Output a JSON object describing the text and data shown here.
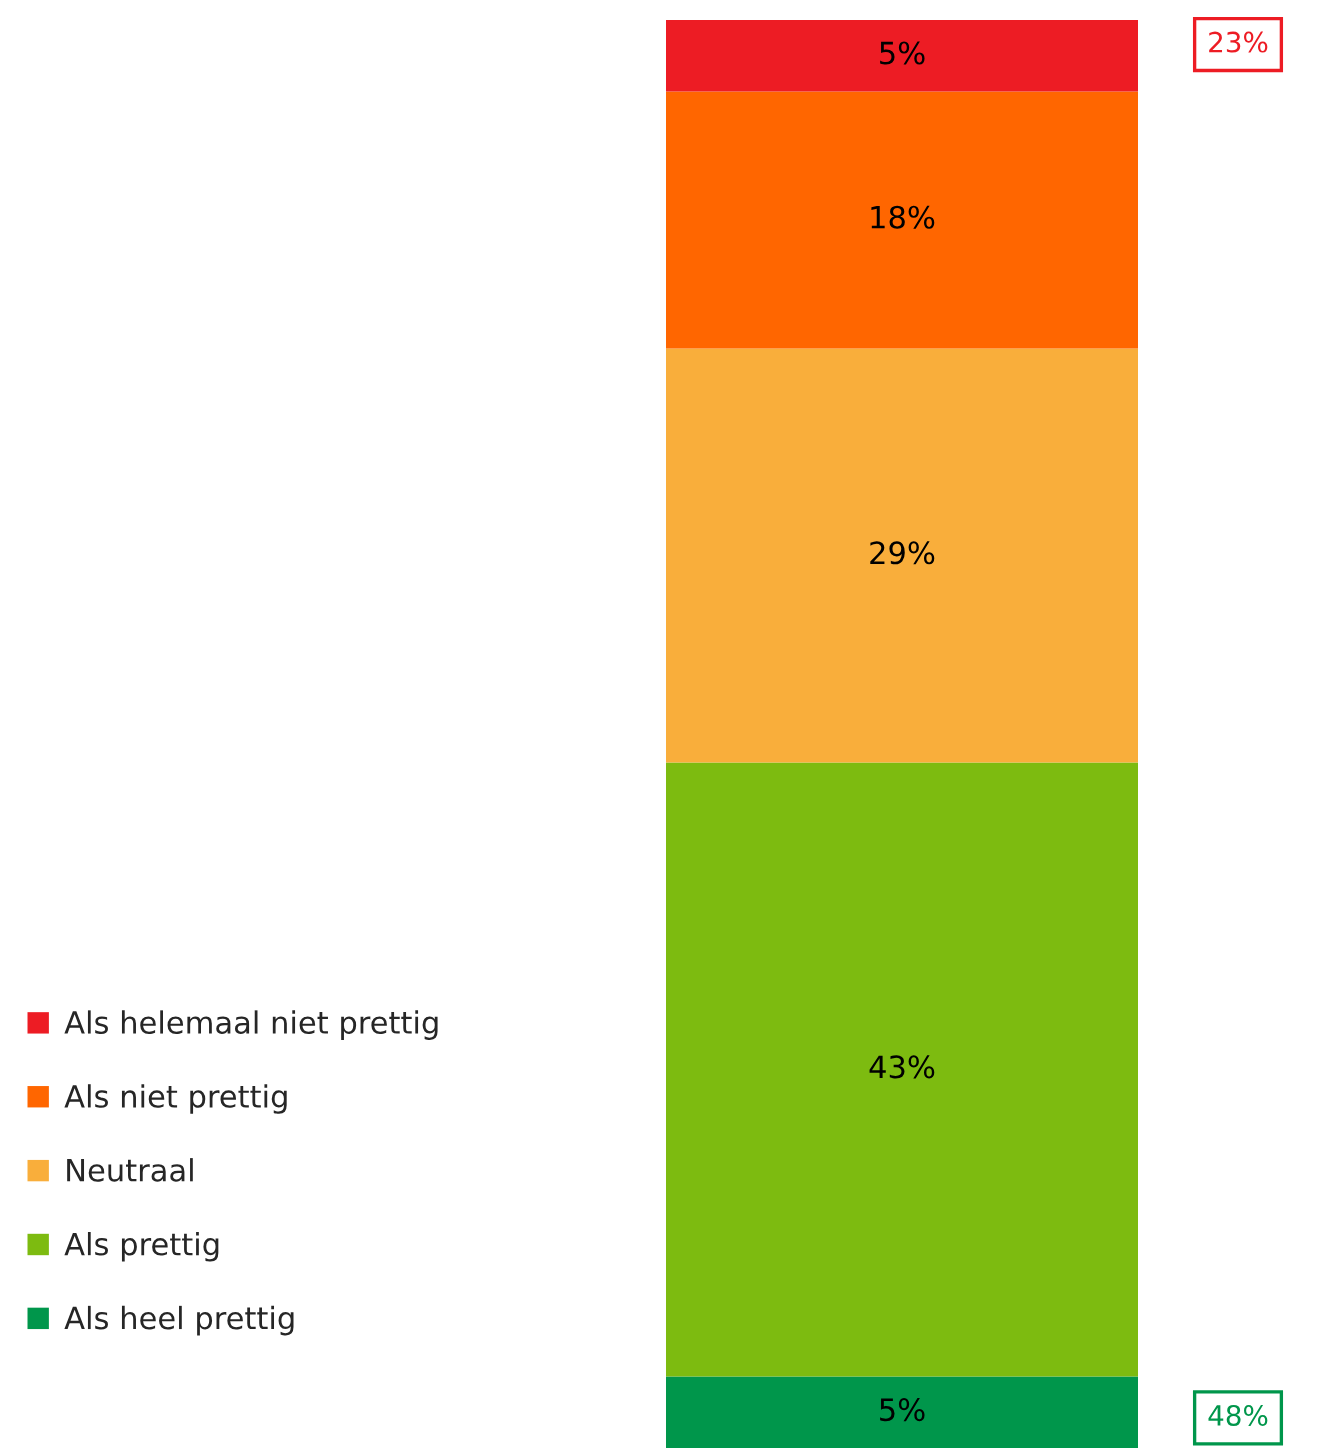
{
  "chart_data": {
    "type": "bar",
    "stacked": true,
    "categories": [
      null
    ],
    "legend": "left",
    "series": [
      {
        "name": "Als heel prettig",
        "color": "#00964b",
        "values": [
          5
        ],
        "value_labels": [
          "5%"
        ]
      },
      {
        "name": "Als prettig",
        "color": "#7dbb10",
        "values": [
          43
        ],
        "value_labels": [
          "43%"
        ]
      },
      {
        "name": "Neutraal",
        "color": "#f9ae3b",
        "values": [
          29
        ],
        "value_labels": [
          "29%"
        ]
      },
      {
        "name": "Als niet prettig",
        "color": "#ff6600",
        "values": [
          18
        ],
        "value_labels": [
          "18%"
        ]
      },
      {
        "name": "Als helemaal niet prettig",
        "color": "#ed1c24",
        "values": [
          5
        ],
        "value_labels": [
          "5%"
        ]
      }
    ],
    "annotations": [
      "23%",
      "48%"
    ]
  }
}
